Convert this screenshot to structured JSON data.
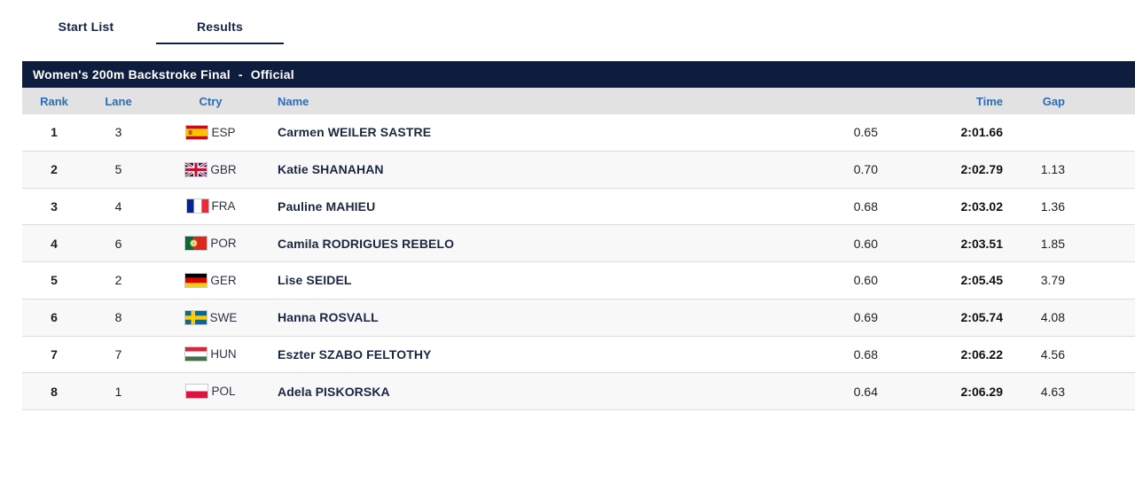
{
  "tabs": [
    {
      "label": "Start List",
      "active": false
    },
    {
      "label": "Results",
      "active": true
    }
  ],
  "title_bar": {
    "event": "Women's 200m Backstroke Final",
    "separator": "-",
    "status": "Official"
  },
  "table": {
    "headers": {
      "rank": "Rank",
      "lane": "Lane",
      "ctry": "Ctry",
      "name": "Name",
      "reaction": "",
      "time": "Time",
      "gap": "Gap"
    },
    "rows": [
      {
        "rank": "1",
        "lane": "3",
        "ctry": "ESP",
        "name": "Carmen WEILER SASTRE",
        "reaction": "0.65",
        "time": "2:01.66",
        "gap": ""
      },
      {
        "rank": "2",
        "lane": "5",
        "ctry": "GBR",
        "name": "Katie SHANAHAN",
        "reaction": "0.70",
        "time": "2:02.79",
        "gap": "1.13"
      },
      {
        "rank": "3",
        "lane": "4",
        "ctry": "FRA",
        "name": "Pauline MAHIEU",
        "reaction": "0.68",
        "time": "2:03.02",
        "gap": "1.36"
      },
      {
        "rank": "4",
        "lane": "6",
        "ctry": "POR",
        "name": "Camila RODRIGUES REBELO",
        "reaction": "0.60",
        "time": "2:03.51",
        "gap": "1.85"
      },
      {
        "rank": "5",
        "lane": "2",
        "ctry": "GER",
        "name": "Lise SEIDEL",
        "reaction": "0.60",
        "time": "2:05.45",
        "gap": "3.79"
      },
      {
        "rank": "6",
        "lane": "8",
        "ctry": "SWE",
        "name": "Hanna ROSVALL",
        "reaction": "0.69",
        "time": "2:05.74",
        "gap": "4.08"
      },
      {
        "rank": "7",
        "lane": "7",
        "ctry": "HUN",
        "name": "Eszter SZABO FELTOTHY",
        "reaction": "0.68",
        "time": "2:06.22",
        "gap": "4.56"
      },
      {
        "rank": "8",
        "lane": "1",
        "ctry": "POL",
        "name": "Adela PISKORSKA",
        "reaction": "0.64",
        "time": "2:06.29",
        "gap": "4.63"
      }
    ]
  },
  "colors": {
    "navy": "#0e1c3e",
    "header_bg": "#e2e2e2",
    "header_text": "#2e6cb5",
    "row_alt": "#f8f8f9",
    "separator": "#dcdcdc",
    "name_text": "#1a2742"
  }
}
